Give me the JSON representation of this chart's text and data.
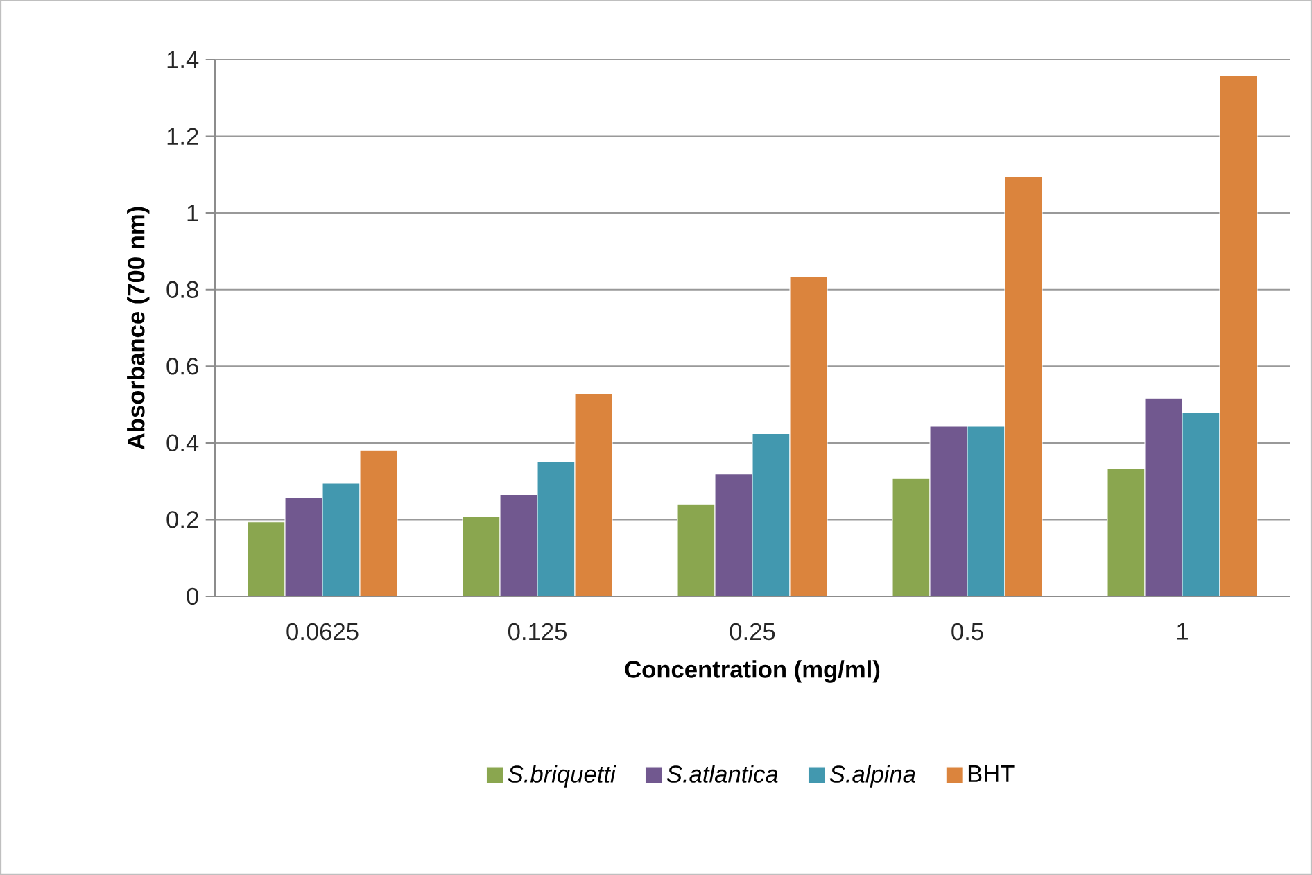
{
  "chart_data": {
    "type": "bar",
    "xlabel": "Concentration  (mg/ml)",
    "ylabel": "Absorbance  (700 nm)",
    "categories": [
      "0.0625",
      "0.125",
      "0.25",
      "0.5",
      "1"
    ],
    "series": [
      {
        "name": "S.briquetti",
        "color": "#8aa64f",
        "values": [
          0.194,
          0.209,
          0.24,
          0.307,
          0.333
        ]
      },
      {
        "name": "S.atlantica",
        "color": "#71588f",
        "values": [
          0.258,
          0.265,
          0.319,
          0.443,
          0.517
        ]
      },
      {
        "name": "S.alpina",
        "color": "#4298af",
        "values": [
          0.295,
          0.351,
          0.424,
          0.443,
          0.479
        ]
      },
      {
        "name": "BHT",
        "color": "#db843d",
        "values": [
          0.381,
          0.529,
          0.835,
          1.094,
          1.358
        ]
      }
    ],
    "ylim": [
      0,
      1.4
    ],
    "yticks": [
      0,
      0.2,
      0.4,
      0.6,
      0.8,
      1,
      1.2,
      1.4
    ],
    "grid": "y",
    "legend": "bottom"
  }
}
